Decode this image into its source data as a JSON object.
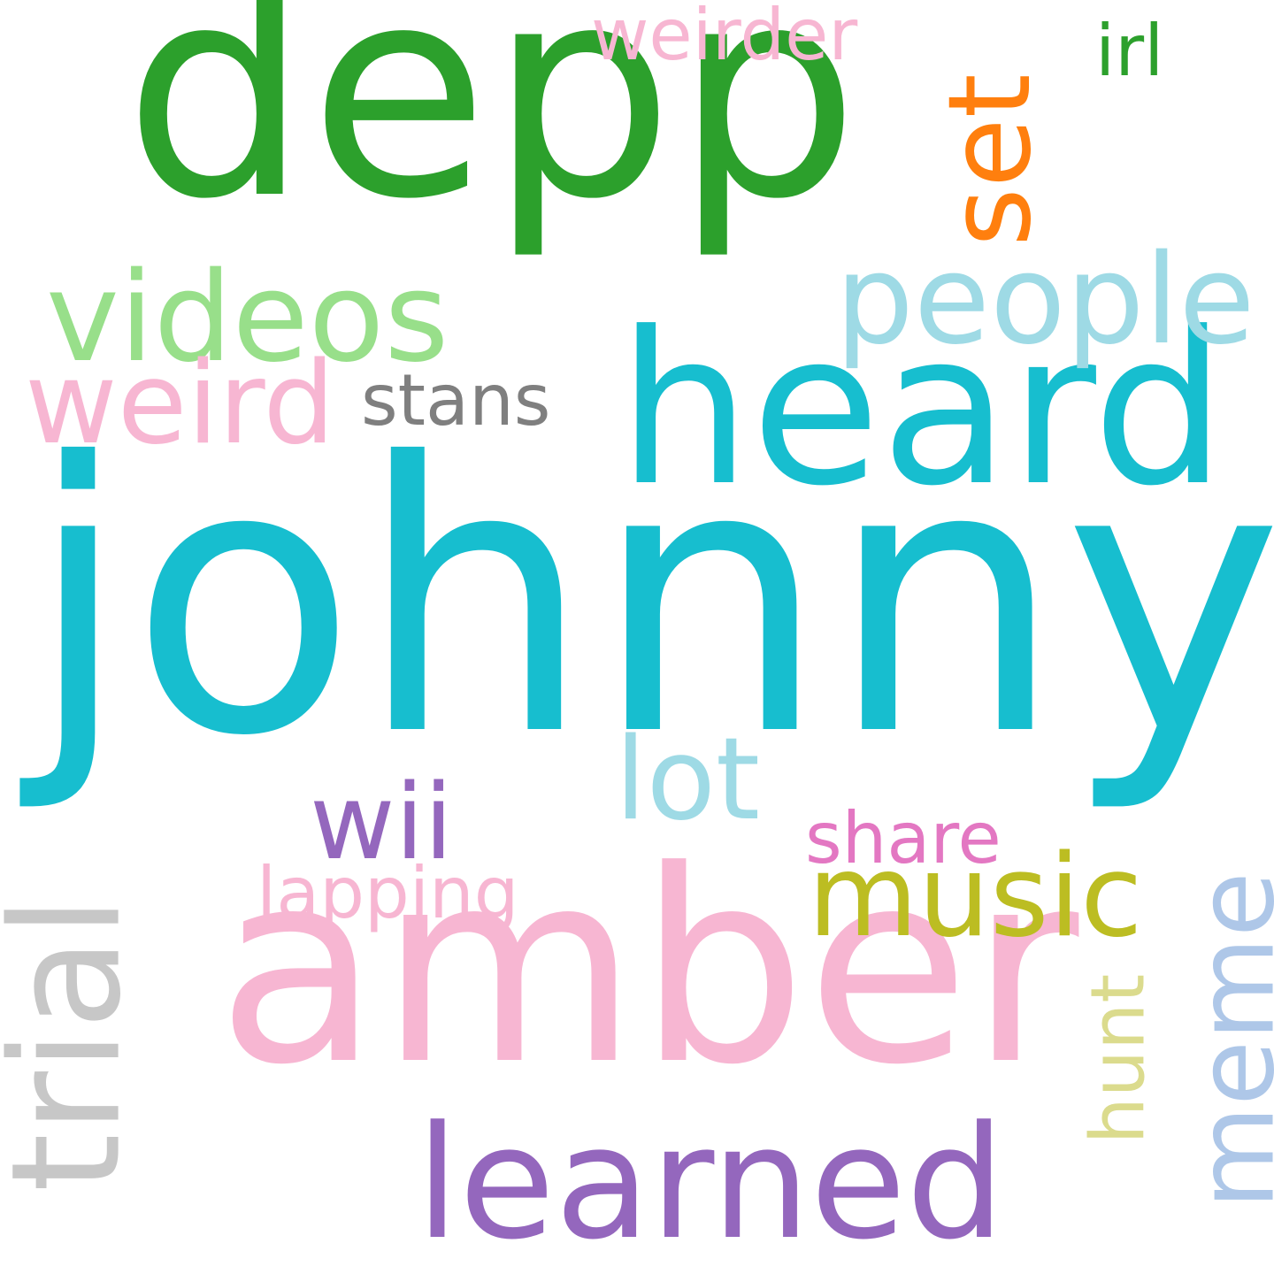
{
  "words": {
    "johnny": {
      "text": "johnny",
      "color": "#17becf"
    },
    "depp": {
      "text": "depp",
      "color": "#2ca02c"
    },
    "amber": {
      "text": "amber",
      "color": "#f7b6d2"
    },
    "heard": {
      "text": "heard",
      "color": "#17becf"
    },
    "learned": {
      "text": "learned",
      "color": "#9467bd"
    },
    "trial": {
      "text": "trial",
      "color": "#c7c7c7"
    },
    "videos": {
      "text": "videos",
      "color": "#98df8a"
    },
    "people": {
      "text": "people",
      "color": "#9edae5"
    },
    "set": {
      "text": "set",
      "color": "#ff7f0e"
    },
    "weird": {
      "text": "weird",
      "color": "#f7b6d2"
    },
    "lot": {
      "text": "lot",
      "color": "#9edae5"
    },
    "music": {
      "text": "music",
      "color": "#bcbd22"
    },
    "meme": {
      "text": "meme",
      "color": "#aec7e8"
    },
    "wii": {
      "text": "wii",
      "color": "#9467bd"
    },
    "weirder": {
      "text": "weirder",
      "color": "#f7b6d2"
    },
    "stans": {
      "text": "stans",
      "color": "#7f7f7f"
    },
    "share": {
      "text": "share",
      "color": "#e377c2"
    },
    "lapping": {
      "text": "lapping",
      "color": "#f7b6d2"
    },
    "irl": {
      "text": "irl",
      "color": "#2ca02c"
    },
    "hunt": {
      "text": "hunt",
      "color": "#dbdb8d"
    }
  }
}
